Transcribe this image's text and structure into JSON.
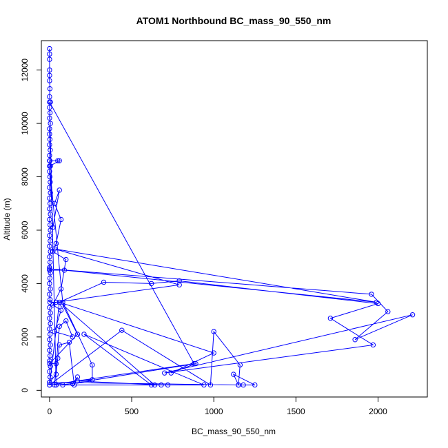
{
  "chart_data": {
    "type": "line",
    "title": "ATOM1 Northbound BC_mass_90_550_nm",
    "xlabel": "BC_mass_90_550_nm",
    "ylabel": "Altitude (m)",
    "xlim": [
      -50,
      2300
    ],
    "ylim": [
      -250,
      13100
    ],
    "x_ticks": [
      0,
      500,
      1000,
      1500,
      2000
    ],
    "y_ticks": [
      0,
      2000,
      4000,
      6000,
      8000,
      10000,
      12000
    ],
    "grid": false,
    "legend": "none",
    "marker": "open-circle",
    "color": "#0000ff",
    "series": [
      {
        "values": [
          [
            0,
            12800
          ],
          [
            0,
            12600
          ],
          [
            0,
            12400
          ],
          [
            0,
            12000
          ],
          [
            0,
            11800
          ],
          [
            0,
            11600
          ],
          [
            2,
            11300
          ],
          [
            0,
            11000
          ],
          [
            5,
            10800
          ],
          [
            0,
            10600
          ],
          [
            3,
            10400
          ],
          [
            0,
            10200
          ],
          [
            5,
            10000
          ],
          [
            0,
            9800
          ],
          [
            0,
            9600
          ],
          [
            2,
            9400
          ],
          [
            0,
            9200
          ],
          [
            4,
            9000
          ],
          [
            0,
            8800
          ],
          [
            2,
            8600
          ],
          [
            5,
            8400
          ],
          [
            0,
            8200
          ],
          [
            2,
            8000
          ],
          [
            4,
            7800
          ],
          [
            0,
            7600
          ],
          [
            5,
            7400
          ],
          [
            0,
            7200
          ],
          [
            3,
            7000
          ],
          [
            0,
            6800
          ],
          [
            5,
            6600
          ],
          [
            0,
            6400
          ],
          [
            3,
            6200
          ],
          [
            5,
            6000
          ],
          [
            0,
            5800
          ],
          [
            4,
            5600
          ],
          [
            0,
            5400
          ],
          [
            5,
            5200
          ],
          [
            0,
            5000
          ],
          [
            3,
            4800
          ],
          [
            0,
            4600
          ],
          [
            5,
            4400
          ],
          [
            2,
            4200
          ],
          [
            0,
            4000
          ],
          [
            5,
            3800
          ],
          [
            0,
            3600
          ],
          [
            3,
            3400
          ],
          [
            2,
            3300
          ],
          [
            60,
            3300
          ],
          [
            330,
            4050
          ],
          [
            620,
            4000
          ],
          [
            790,
            4100
          ],
          [
            2000,
            3250
          ],
          [
            1710,
            2700
          ],
          [
            1970,
            1700
          ],
          [
            700,
            650
          ],
          [
            2210,
            2830
          ],
          [
            1860,
            1900
          ],
          [
            2060,
            2950
          ],
          [
            1960,
            3600
          ],
          [
            0,
            4550
          ],
          [
            0,
            4500
          ],
          [
            90,
            4500
          ],
          [
            1990,
            3300
          ],
          [
            30,
            5300
          ],
          [
            790,
            3950
          ],
          [
            40,
            3300
          ],
          [
            0,
            3100
          ],
          [
            5,
            2900
          ],
          [
            0,
            2700
          ],
          [
            5,
            2500
          ],
          [
            0,
            2300
          ],
          [
            3,
            2100
          ],
          [
            0,
            1900
          ],
          [
            5,
            1700
          ],
          [
            0,
            1500
          ],
          [
            3,
            1300
          ],
          [
            0,
            1100
          ],
          [
            5,
            900
          ],
          [
            0,
            700
          ],
          [
            3,
            500
          ],
          [
            0,
            300
          ],
          [
            0,
            200
          ],
          [
            60,
            3300
          ],
          [
            1000,
            1400
          ],
          [
            740,
            650
          ],
          [
            890,
            1000
          ],
          [
            80,
            200
          ],
          [
            940,
            200
          ],
          [
            210,
            2100
          ],
          [
            620,
            200
          ],
          [
            40,
            200
          ],
          [
            0,
            10800
          ],
          [
            880,
            1000
          ],
          [
            0,
            200
          ],
          [
            440,
            2250
          ],
          [
            980,
            200
          ],
          [
            1000,
            2200
          ],
          [
            1160,
            950
          ],
          [
            1150,
            200
          ],
          [
            1180,
            200
          ],
          [
            1250,
            200
          ],
          [
            1120,
            600
          ],
          [
            1150,
            200
          ],
          [
            0,
            300
          ],
          [
            40,
            600
          ],
          [
            50,
            1200
          ],
          [
            60,
            1700
          ],
          [
            120,
            1800
          ],
          [
            150,
            200
          ],
          [
            170,
            500
          ],
          [
            140,
            250
          ],
          [
            30,
            200
          ],
          [
            60,
            2400
          ],
          [
            100,
            2600
          ],
          [
            140,
            2000
          ],
          [
            30,
            2200
          ],
          [
            70,
            3000
          ],
          [
            20,
            3200
          ],
          [
            70,
            3800
          ],
          [
            100,
            4900
          ],
          [
            20,
            5200
          ],
          [
            40,
            5500
          ],
          [
            70,
            6400
          ],
          [
            30,
            7000
          ],
          [
            60,
            7500
          ],
          [
            20,
            6100
          ],
          [
            0,
            8600
          ],
          [
            50,
            8600
          ],
          [
            60,
            8600
          ],
          [
            0,
            8400
          ],
          [
            80,
            3300
          ],
          [
            260,
            950
          ],
          [
            260,
            400
          ],
          [
            170,
            350
          ],
          [
            680,
            200
          ],
          [
            720,
            200
          ],
          [
            640,
            200
          ],
          [
            80,
            3200
          ],
          [
            170,
            2100
          ],
          [
            0,
            1000
          ],
          [
            40,
            1000
          ]
        ]
      }
    ]
  }
}
